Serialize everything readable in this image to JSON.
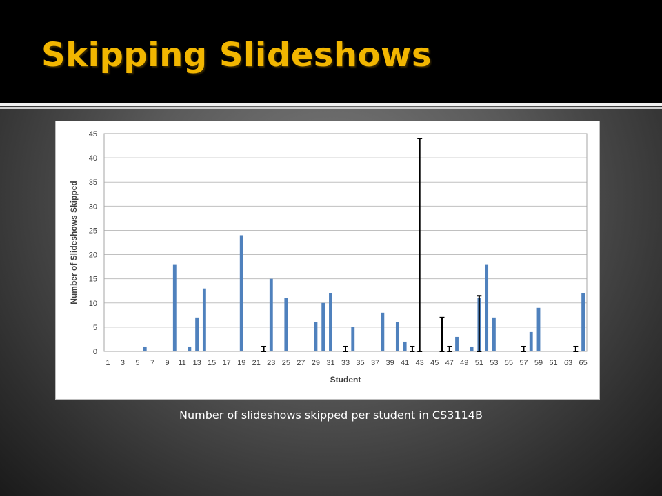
{
  "slide": {
    "title": "Skipping Slideshows",
    "caption": "Number of slideshows skipped per student in CS3114B"
  },
  "colors": {
    "title": "#f2b600",
    "bar": "#4f81bd",
    "error_bar": "#000000",
    "grid": "#c0c0c0",
    "axis_text": "#404040"
  },
  "chart_data": {
    "type": "bar",
    "xlabel": "Student",
    "ylabel": "Number of Slideshows Skipped",
    "ylim": [
      0,
      45
    ],
    "yticks": [
      0,
      5,
      10,
      15,
      20,
      25,
      30,
      35,
      40,
      45
    ],
    "grid": true,
    "legend": "none",
    "categories": [
      1,
      2,
      3,
      4,
      5,
      6,
      7,
      8,
      9,
      10,
      11,
      12,
      13,
      14,
      15,
      16,
      17,
      18,
      19,
      20,
      21,
      22,
      23,
      24,
      25,
      26,
      27,
      28,
      29,
      30,
      31,
      32,
      33,
      34,
      35,
      36,
      37,
      38,
      39,
      40,
      41,
      42,
      43,
      44,
      45,
      46,
      47,
      48,
      49,
      50,
      51,
      52,
      53,
      54,
      55,
      56,
      57,
      58,
      59,
      60,
      61,
      62,
      63,
      64,
      65
    ],
    "xtick_labels": [
      1,
      3,
      5,
      7,
      9,
      11,
      13,
      15,
      17,
      19,
      21,
      23,
      25,
      27,
      29,
      31,
      33,
      35,
      37,
      39,
      41,
      43,
      45,
      47,
      49,
      51,
      53,
      55,
      57,
      59,
      61,
      63,
      65
    ],
    "values": [
      0,
      0,
      0,
      0,
      0,
      1,
      0,
      0,
      0,
      18,
      0,
      1,
      7,
      13,
      0,
      0,
      0,
      0,
      24,
      0,
      0,
      0,
      15,
      0,
      11,
      0,
      0,
      0,
      6,
      10,
      12,
      0,
      0,
      5,
      0,
      0,
      0,
      8,
      0,
      6,
      2,
      0,
      0,
      0,
      0,
      0,
      0,
      3,
      0,
      1,
      11,
      18,
      7,
      0,
      0,
      0,
      0,
      4,
      9,
      0,
      0,
      0,
      0,
      0,
      12
    ],
    "error_markers": [
      {
        "student": 22,
        "value": 1
      },
      {
        "student": 33,
        "value": 1
      },
      {
        "student": 42,
        "value": 1
      },
      {
        "student": 43,
        "value": 44
      },
      {
        "student": 46,
        "value": 7
      },
      {
        "student": 47,
        "value": 1
      },
      {
        "student": 51,
        "value": 11.5
      },
      {
        "student": 57,
        "value": 1
      },
      {
        "student": 64,
        "value": 1
      }
    ]
  }
}
